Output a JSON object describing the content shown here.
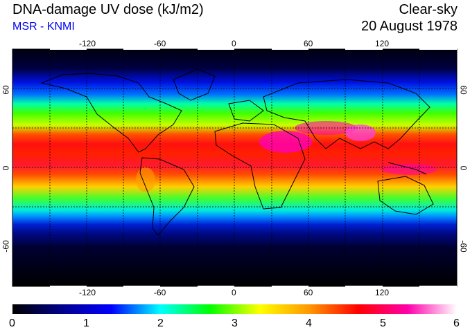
{
  "header": {
    "title": "DNA-damage UV dose (kJ/m2)",
    "subtitle": "MSR - KNMI",
    "sky_condition": "Clear-sky",
    "date": "20 August 1978"
  },
  "map": {
    "projection": "equirectangular",
    "lon_range": [
      -180,
      180
    ],
    "lat_range": [
      -90,
      90
    ],
    "grid_spacing_deg": 30,
    "grid_style": "dotted",
    "lon_ticks": [
      -120,
      -60,
      0,
      60,
      120
    ],
    "lon_tick_labels": [
      "-120",
      "-60",
      "0",
      "60",
      "120"
    ],
    "lat_ticks": [
      60,
      0,
      -60
    ],
    "lat_tick_labels": [
      "60",
      "0",
      "-60"
    ]
  },
  "colorbar": {
    "min": 0,
    "max": 6,
    "labels": [
      "0",
      "1",
      "2",
      "3",
      "4",
      "5",
      "6"
    ],
    "colors": [
      "#000000",
      "#00008b",
      "#0000ff",
      "#00ffff",
      "#00ff00",
      "#ffff00",
      "#ff9900",
      "#ff0000",
      "#ff00aa",
      "#ffffff"
    ]
  }
}
